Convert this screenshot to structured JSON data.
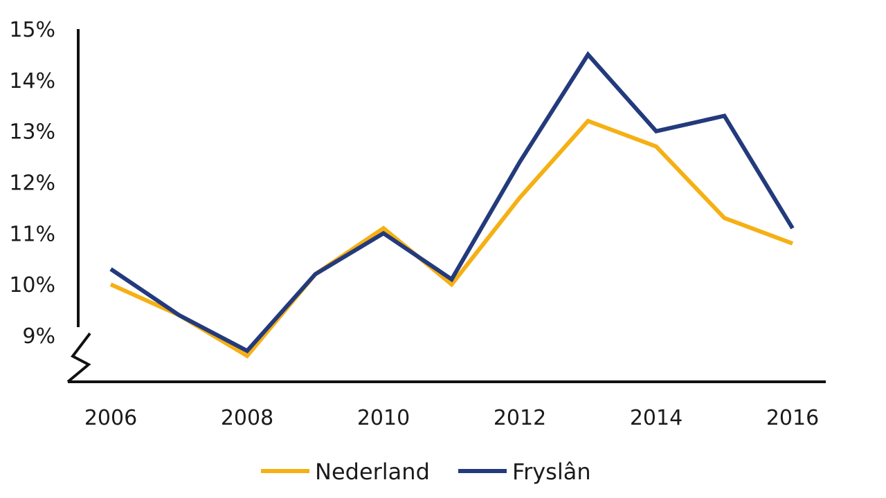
{
  "chart_data": {
    "type": "line",
    "x": [
      2006,
      2007,
      2008,
      2009,
      2010,
      2011,
      2012,
      2013,
      2014,
      2015,
      2016
    ],
    "x_tick_labels": [
      "2006",
      "2008",
      "2010",
      "2012",
      "2014",
      "2016"
    ],
    "y_tick_labels": [
      "9%",
      "10%",
      "11%",
      "12%",
      "13%",
      "14%",
      "15%"
    ],
    "ylim": [
      9,
      15
    ],
    "y_axis_break": true,
    "grid": false,
    "legend_position": "bottom",
    "series": [
      {
        "name": "Nederland",
        "color": "#f5b014",
        "values": [
          10.0,
          9.4,
          8.6,
          10.2,
          11.1,
          10.0,
          11.7,
          13.2,
          12.7,
          11.3,
          10.8
        ]
      },
      {
        "name": "Fryslân",
        "color": "#233a7c",
        "values": [
          10.3,
          9.4,
          8.7,
          10.2,
          11.0,
          10.1,
          12.4,
          14.5,
          13.0,
          13.3,
          11.1
        ]
      }
    ]
  }
}
